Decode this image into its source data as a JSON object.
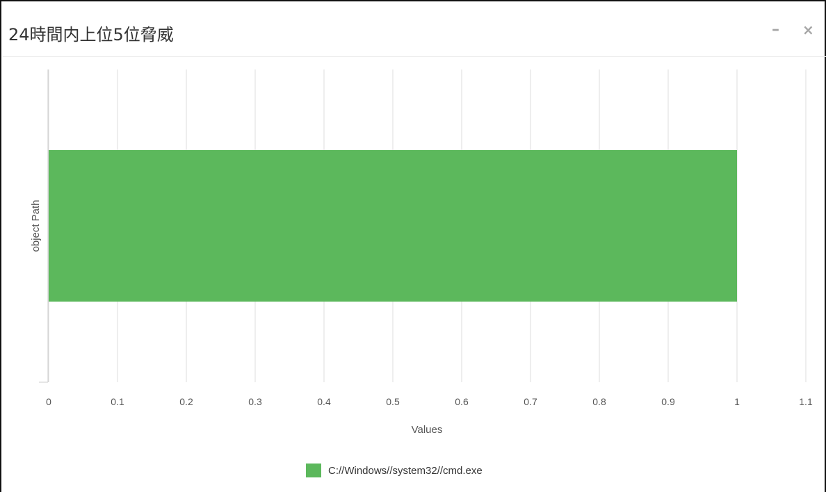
{
  "header": {
    "title": "24時間内上位5位脅威",
    "minimize_icon": "minus-icon",
    "close_icon": "close-icon"
  },
  "chart_data": {
    "type": "bar",
    "orientation": "horizontal",
    "title": "24時間内上位5位脅威",
    "xlabel": "Values",
    "ylabel": "object Path",
    "xlim": [
      0,
      1.1
    ],
    "xticks": [
      "0",
      "0.1",
      "0.2",
      "0.3",
      "0.4",
      "0.5",
      "0.6",
      "0.7",
      "0.8",
      "0.9",
      "1",
      "1.1"
    ],
    "categories": [
      "C://Windows//system32//cmd.exe"
    ],
    "series": [
      {
        "name": "C://Windows//system32//cmd.exe",
        "values": [
          1
        ],
        "color": "#5cb85c"
      }
    ],
    "grid": true,
    "legend_position": "bottom"
  }
}
